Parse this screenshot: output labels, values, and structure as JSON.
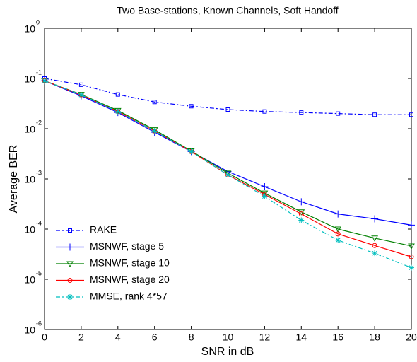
{
  "chart_data": {
    "type": "line",
    "title": "Two Base-stations, Known Channels, Soft Handoff",
    "xlabel": "SNR in dB",
    "ylabel": "Average BER",
    "log_y": true,
    "xlim": [
      0,
      20
    ],
    "xticks": [
      0,
      2,
      4,
      6,
      8,
      10,
      12,
      14,
      16,
      18,
      20
    ],
    "ylim": [
      1e-06,
      1
    ],
    "yticks": [
      {
        "value": 1,
        "label": "10",
        "exponent": "0"
      },
      {
        "value": 0.1,
        "label": "10",
        "exponent": "-1"
      },
      {
        "value": 0.01,
        "label": "10",
        "exponent": "-2"
      },
      {
        "value": 0.001,
        "label": "10",
        "exponent": "-3"
      },
      {
        "value": 0.0001,
        "label": "10",
        "exponent": "-4"
      },
      {
        "value": 1e-05,
        "label": "10",
        "exponent": "-5"
      },
      {
        "value": 1e-06,
        "label": "10",
        "exponent": "-6"
      }
    ],
    "legend": "lower left",
    "x": [
      0,
      2,
      4,
      6,
      8,
      10,
      12,
      14,
      16,
      18,
      20
    ],
    "series": [
      {
        "name": "RAKE",
        "color": "#0000ff",
        "dash": "dashdot",
        "marker": "square",
        "values": [
          0.1,
          0.075,
          0.048,
          0.034,
          0.028,
          0.024,
          0.022,
          0.021,
          0.02,
          0.019,
          0.019
        ]
      },
      {
        "name": "MSNWF, stage 5",
        "color": "#0000ff",
        "dash": "solid",
        "marker": "plus",
        "values": [
          0.09,
          0.045,
          0.021,
          0.0085,
          0.0035,
          0.0014,
          0.0007,
          0.00035,
          0.0002,
          0.00016,
          0.00012
        ]
      },
      {
        "name": "MSNWF, stage 10",
        "color": "#008000",
        "dash": "solid",
        "marker": "triangle",
        "values": [
          0.09,
          0.048,
          0.023,
          0.0095,
          0.0036,
          0.0013,
          0.00052,
          0.00022,
          0.0001,
          6.6e-05,
          4.6e-05
        ]
      },
      {
        "name": "MSNWF, stage 20",
        "color": "#ff0000",
        "dash": "solid",
        "marker": "circle",
        "values": [
          0.09,
          0.047,
          0.022,
          0.009,
          0.0035,
          0.0012,
          0.00049,
          0.0002,
          8e-05,
          4.7e-05,
          2.8e-05
        ]
      },
      {
        "name": "MMSE, rank 4*57",
        "color": "#00bfbf",
        "dash": "dashdot",
        "marker": "star",
        "values": [
          0.09,
          0.047,
          0.022,
          0.009,
          0.0035,
          0.0012,
          0.00045,
          0.00015,
          6e-05,
          3.3e-05,
          1.7e-05
        ]
      }
    ]
  }
}
